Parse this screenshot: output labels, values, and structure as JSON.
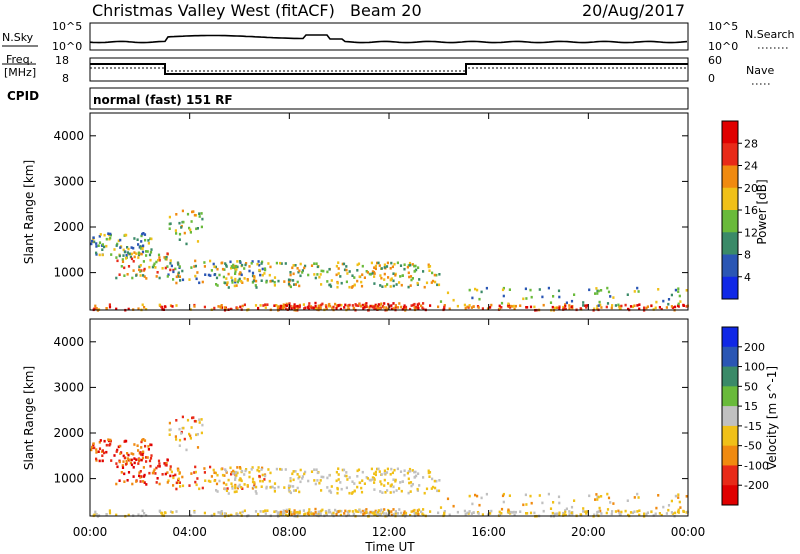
{
  "header": {
    "station": "Christmas Valley West (fitACF)",
    "beam": "Beam 20",
    "date": "20/Aug/2017"
  },
  "noise_panel": {
    "left_label": "N.Sky",
    "right_label": "N.Search",
    "left_ticks": [
      "10^5",
      "10^0"
    ],
    "right_ticks": [
      "10^5",
      "10^0"
    ]
  },
  "freq_panel": {
    "left_label_1": "Freq.",
    "left_label_2": "[MHz]",
    "right_label": "Nave",
    "left_ticks": [
      "18",
      "8"
    ],
    "right_ticks": [
      "60",
      "0"
    ]
  },
  "cpid": {
    "label": "CPID",
    "value": "normal (fast) 151 RF"
  },
  "chart_data": [
    {
      "type": "heatmap",
      "name": "power",
      "ylabel": "Slant Range [km]",
      "y_ticks": [
        1000,
        2000,
        3000,
        4000
      ],
      "ylim": [
        180,
        4500
      ],
      "xlim": [
        0,
        24
      ],
      "colorbar": {
        "label": "Power [dB]",
        "ticks": [
          "4",
          "8",
          "12",
          "16",
          "20",
          "24",
          "28"
        ],
        "colors": [
          "#1028e6",
          "#2a56b4",
          "#3a8a68",
          "#69ba3a",
          "#f0c018",
          "#f08a10",
          "#e82a18",
          "#e00000"
        ]
      }
    },
    {
      "type": "heatmap",
      "name": "velocity",
      "ylabel": "Slant Range [km]",
      "y_ticks": [
        1000,
        2000,
        3000,
        4000
      ],
      "ylim": [
        180,
        4500
      ],
      "xlim": [
        0,
        24
      ],
      "colorbar": {
        "label": "Velocity [m s^-1]",
        "ticks": [
          "200",
          "100",
          "50",
          "15",
          "-15",
          "-50",
          "-100",
          "-200"
        ],
        "colors": [
          "#1028e6",
          "#2a56b4",
          "#3a8a68",
          "#69ba3a",
          "#c0c0c0",
          "#f0c018",
          "#f08a10",
          "#e82a18",
          "#e00000"
        ]
      }
    }
  ],
  "x_axis": {
    "label": "Time UT",
    "ticks": [
      "00:00",
      "04:00",
      "08:00",
      "12:00",
      "16:00",
      "20:00",
      "00:00"
    ]
  }
}
